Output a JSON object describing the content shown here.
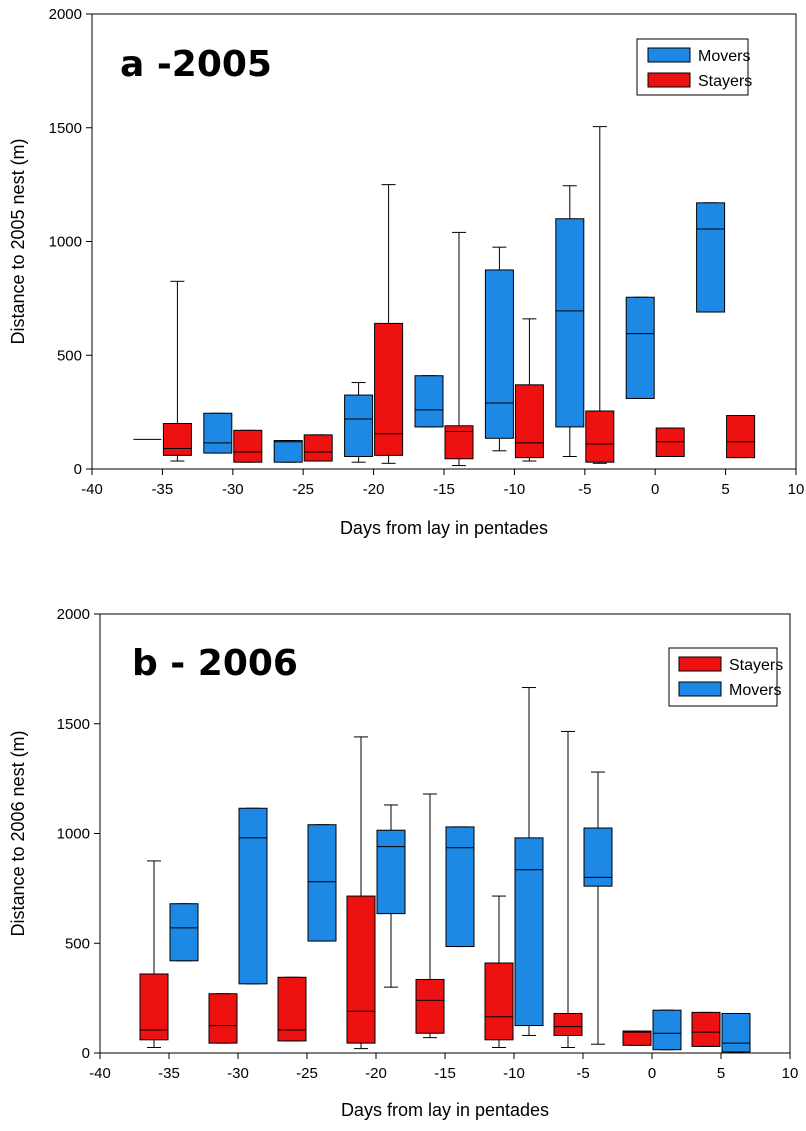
{
  "chart_data": [
    {
      "type": "box",
      "title": "a -2005",
      "xlabel": "Days from lay in pentades",
      "ylabel": "Distance to 2005 nest (m)",
      "xlim": [
        -40,
        10
      ],
      "ylim": [
        0,
        2000
      ],
      "xticks": [
        -40,
        -35,
        -30,
        -25,
        -20,
        -15,
        -10,
        -5,
        0,
        5,
        10
      ],
      "yticks": [
        0,
        500,
        1000,
        1500,
        2000
      ],
      "legend_position": "top-right",
      "legend": [
        "Movers",
        "Stayers"
      ],
      "colors": {
        "Movers": "#1e88e5",
        "Stayers": "#ee1111"
      },
      "series": [
        {
          "name": "Movers",
          "boxes": [
            {
              "x": -35,
              "median": 130
            },
            {
              "x": -30,
              "whisker_low": 70,
              "q1": 70,
              "median": 115,
              "q3": 245,
              "whisker_high": 245
            },
            {
              "x": -25,
              "whisker_low": 30,
              "q1": 30,
              "median": 120,
              "q3": 125,
              "whisker_high": 125
            },
            {
              "x": -20,
              "whisker_low": 30,
              "q1": 55,
              "median": 220,
              "q3": 325,
              "whisker_high": 380
            },
            {
              "x": -15,
              "whisker_low": 185,
              "q1": 185,
              "median": 260,
              "q3": 410,
              "whisker_high": 410
            },
            {
              "x": -10,
              "whisker_low": 80,
              "q1": 135,
              "median": 290,
              "q3": 875,
              "whisker_high": 975
            },
            {
              "x": -5,
              "whisker_low": 55,
              "q1": 185,
              "median": 695,
              "q3": 1100,
              "whisker_high": 1245
            },
            {
              "x": 0,
              "whisker_low": 310,
              "q1": 310,
              "median": 595,
              "q3": 755,
              "whisker_high": 755
            },
            {
              "x": 5,
              "whisker_low": 690,
              "q1": 690,
              "median": 1055,
              "q3": 1170,
              "whisker_high": 1170
            }
          ]
        },
        {
          "name": "Stayers",
          "boxes": [
            {
              "x": -35,
              "whisker_low": 35,
              "q1": 60,
              "median": 90,
              "q3": 200,
              "whisker_high": 825
            },
            {
              "x": -30,
              "whisker_low": 30,
              "q1": 30,
              "median": 75,
              "q3": 170,
              "whisker_high": 170
            },
            {
              "x": -25,
              "whisker_low": 35,
              "q1": 35,
              "median": 75,
              "q3": 150,
              "whisker_high": 150
            },
            {
              "x": -20,
              "whisker_low": 25,
              "q1": 60,
              "median": 155,
              "q3": 640,
              "whisker_high": 1250
            },
            {
              "x": -15,
              "whisker_low": 15,
              "q1": 45,
              "median": 165,
              "q3": 190,
              "whisker_high": 1040
            },
            {
              "x": -10,
              "whisker_low": 35,
              "q1": 50,
              "median": 115,
              "q3": 370,
              "whisker_high": 660
            },
            {
              "x": -5,
              "whisker_low": 25,
              "q1": 30,
              "median": 110,
              "q3": 255,
              "whisker_high": 1505
            },
            {
              "x": 0,
              "whisker_low": 55,
              "q1": 55,
              "median": 120,
              "q3": 180,
              "whisker_high": 180
            },
            {
              "x": 5,
              "whisker_low": 50,
              "q1": 50,
              "median": 120,
              "q3": 235,
              "whisker_high": 235
            }
          ]
        }
      ]
    },
    {
      "type": "box",
      "title": "b - 2006",
      "xlabel": "Days from lay in pentades",
      "ylabel": "Distance to 2006 nest (m)",
      "xlim": [
        -40,
        10
      ],
      "ylim": [
        0,
        2000
      ],
      "xticks": [
        -40,
        -35,
        -30,
        -25,
        -20,
        -15,
        -10,
        -5,
        0,
        5,
        10
      ],
      "yticks": [
        0,
        500,
        1000,
        1500,
        2000
      ],
      "legend_position": "top-right",
      "legend": [
        "Stayers",
        "Movers"
      ],
      "colors": {
        "Movers": "#1e88e5",
        "Stayers": "#ee1111"
      },
      "series": [
        {
          "name": "Stayers",
          "boxes": [
            {
              "x": -35,
              "whisker_low": 25,
              "q1": 60,
              "median": 105,
              "q3": 360,
              "whisker_high": 875
            },
            {
              "x": -30,
              "whisker_low": 45,
              "q1": 45,
              "median": 125,
              "q3": 270,
              "whisker_high": 270
            },
            {
              "x": -25,
              "whisker_low": 55,
              "q1": 55,
              "median": 105,
              "q3": 345,
              "whisker_high": 345
            },
            {
              "x": -20,
              "whisker_low": 20,
              "q1": 45,
              "median": 190,
              "q3": 715,
              "whisker_high": 1440
            },
            {
              "x": -15,
              "whisker_low": 70,
              "q1": 90,
              "median": 240,
              "q3": 335,
              "whisker_high": 1180
            },
            {
              "x": -10,
              "whisker_low": 25,
              "q1": 60,
              "median": 165,
              "q3": 410,
              "whisker_high": 715
            },
            {
              "x": -5,
              "whisker_low": 25,
              "q1": 80,
              "median": 120,
              "q3": 180,
              "whisker_high": 1465
            },
            {
              "x": 0,
              "whisker_low": 35,
              "q1": 35,
              "median": 95,
              "q3": 100,
              "whisker_high": 100
            },
            {
              "x": 5,
              "whisker_low": 30,
              "q1": 30,
              "median": 95,
              "q3": 185,
              "whisker_high": 185
            }
          ]
        },
        {
          "name": "Movers",
          "boxes": [
            {
              "x": -35,
              "whisker_low": 420,
              "q1": 420,
              "median": 570,
              "q3": 680,
              "whisker_high": 680
            },
            {
              "x": -30,
              "whisker_low": 315,
              "q1": 315,
              "median": 980,
              "q3": 1115,
              "whisker_high": 1115
            },
            {
              "x": -25,
              "whisker_low": 510,
              "q1": 510,
              "median": 780,
              "q3": 1040,
              "whisker_high": 1040
            },
            {
              "x": -20,
              "whisker_low": 300,
              "q1": 635,
              "median": 940,
              "q3": 1015,
              "whisker_high": 1130
            },
            {
              "x": -15,
              "whisker_low": 485,
              "q1": 485,
              "median": 935,
              "q3": 1030,
              "whisker_high": 1030
            },
            {
              "x": -10,
              "whisker_low": 80,
              "q1": 125,
              "median": 835,
              "q3": 980,
              "whisker_high": 1665
            },
            {
              "x": -5,
              "whisker_low": 40,
              "q1": 760,
              "median": 800,
              "q3": 1025,
              "whisker_high": 1280
            },
            {
              "x": 0,
              "whisker_low": 15,
              "q1": 15,
              "median": 90,
              "q3": 195,
              "whisker_high": 195
            },
            {
              "x": 5,
              "whisker_low": 5,
              "q1": 5,
              "median": 45,
              "q3": 180,
              "whisker_high": 180
            }
          ]
        }
      ]
    }
  ]
}
